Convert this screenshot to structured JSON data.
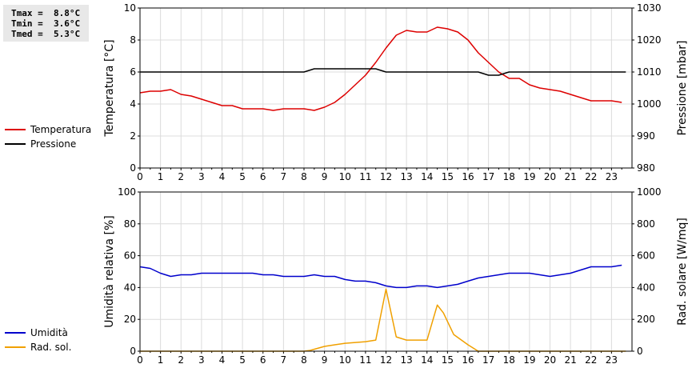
{
  "stats": {
    "tmax": "Tmax =  8.8°C",
    "tmin": "Tmin =  3.6°C",
    "tmed": "Tmed =  5.3°C"
  },
  "legend_top": [
    {
      "label": "Temperatura",
      "color": "#dd0000"
    },
    {
      "label": "Pressione",
      "color": "#000000"
    }
  ],
  "legend_bottom": [
    {
      "label": "Umidità",
      "color": "#0000cc"
    },
    {
      "label": "Rad. sol.",
      "color": "#f0a000"
    }
  ],
  "chart_data": [
    {
      "type": "line",
      "xlabel": "",
      "ylabel_left": "Temperatura [°C]",
      "ylabel_right": "Pressione [mbar]",
      "x_ticks": [
        "0",
        "1",
        "2",
        "3",
        "4",
        "5",
        "6",
        "7",
        "8",
        "9",
        "10",
        "11",
        "12",
        "13",
        "14",
        "15",
        "16",
        "17",
        "18",
        "19",
        "20",
        "21",
        "22",
        "23"
      ],
      "xlim": [
        0,
        24
      ],
      "ylim_left": [
        0,
        10
      ],
      "ylim_right": [
        980,
        1030
      ],
      "yticks_left": [
        "0",
        "2",
        "4",
        "6",
        "8",
        "10"
      ],
      "yticks_right": [
        "980",
        "990",
        "1000",
        "1010",
        "1020",
        "1030"
      ],
      "grid": true,
      "series": [
        {
          "name": "Temperatura",
          "axis": "left",
          "color": "#dd0000",
          "x": [
            0,
            0.5,
            1,
            1.5,
            2,
            2.5,
            3,
            3.5,
            4,
            4.5,
            5,
            5.5,
            6,
            6.5,
            7,
            7.5,
            8,
            8.5,
            9,
            9.5,
            10,
            10.5,
            11,
            11.5,
            12,
            12.5,
            13,
            13.5,
            14,
            14.5,
            15,
            15.5,
            16,
            16.5,
            17,
            17.5,
            18,
            18.5,
            19,
            19.5,
            20,
            20.5,
            21,
            21.5,
            22,
            22.5,
            23,
            23.5
          ],
          "y": [
            4.7,
            4.8,
            4.8,
            4.9,
            4.6,
            4.5,
            4.3,
            4.1,
            3.9,
            3.9,
            3.7,
            3.7,
            3.7,
            3.6,
            3.7,
            3.7,
            3.7,
            3.6,
            3.8,
            4.1,
            4.6,
            5.2,
            5.8,
            6.6,
            7.5,
            8.3,
            8.6,
            8.5,
            8.5,
            8.8,
            8.7,
            8.5,
            8.0,
            7.2,
            6.6,
            6.0,
            5.6,
            5.6,
            5.2,
            5.0,
            4.9,
            4.8,
            4.6,
            4.4,
            4.2,
            4.2,
            4.2,
            4.1
          ]
        },
        {
          "name": "Pressione",
          "axis": "right",
          "color": "#000000",
          "x": [
            0,
            8,
            8.5,
            9,
            11.5,
            12,
            16.5,
            17,
            17.5,
            18,
            23.7
          ],
          "y": [
            1010,
            1010,
            1011,
            1011,
            1011,
            1010,
            1010,
            1009,
            1009,
            1010,
            1010
          ]
        }
      ]
    },
    {
      "type": "line",
      "xlabel": "",
      "ylabel_left": "Umidità relativa [%]",
      "ylabel_right": "Rad. solare [W/mq]",
      "x_ticks": [
        "0",
        "1",
        "2",
        "3",
        "4",
        "5",
        "6",
        "7",
        "8",
        "9",
        "10",
        "11",
        "12",
        "13",
        "14",
        "15",
        "16",
        "17",
        "18",
        "19",
        "20",
        "21",
        "22",
        "23"
      ],
      "xlim": [
        0,
        24
      ],
      "ylim_left": [
        0,
        100
      ],
      "ylim_right": [
        0,
        1000
      ],
      "yticks_left": [
        "0",
        "20",
        "40",
        "60",
        "80",
        "100"
      ],
      "yticks_right": [
        "0",
        "200",
        "400",
        "600",
        "800",
        "1000"
      ],
      "grid": true,
      "series": [
        {
          "name": "Umidità",
          "axis": "left",
          "color": "#0000cc",
          "x": [
            0,
            0.5,
            1,
            1.5,
            2,
            2.5,
            3,
            3.5,
            4,
            4.5,
            5,
            5.5,
            6,
            6.5,
            7,
            7.5,
            8,
            8.5,
            9,
            9.5,
            10,
            10.5,
            11,
            11.5,
            12,
            12.5,
            13,
            13.5,
            14,
            14.5,
            15,
            15.5,
            16,
            16.5,
            17,
            17.5,
            18,
            18.5,
            19,
            19.5,
            20,
            20.5,
            21,
            21.5,
            22,
            22.5,
            23,
            23.5
          ],
          "y": [
            53,
            52,
            49,
            47,
            48,
            48,
            49,
            49,
            49,
            49,
            49,
            49,
            48,
            48,
            47,
            47,
            47,
            48,
            47,
            47,
            45,
            44,
            44,
            43,
            41,
            40,
            40,
            41,
            41,
            40,
            41,
            42,
            44,
            46,
            47,
            48,
            49,
            49,
            49,
            48,
            47,
            48,
            49,
            51,
            53,
            53,
            53,
            54
          ]
        },
        {
          "name": "Rad. sol.",
          "axis": "right",
          "color": "#f0a000",
          "x": [
            0,
            1,
            2,
            3,
            4,
            5,
            6,
            7,
            8,
            8.3,
            9,
            9.5,
            10,
            10.5,
            11,
            11.5,
            12,
            12.5,
            13,
            13.5,
            14,
            14.5,
            14.8,
            15.3,
            16,
            16.5,
            17,
            18,
            19,
            20,
            21,
            22,
            23,
            23.7
          ],
          "y": [
            0,
            0,
            0,
            0,
            0,
            0,
            0,
            0,
            0,
            5,
            30,
            40,
            50,
            55,
            60,
            70,
            390,
            90,
            70,
            70,
            70,
            290,
            240,
            105,
            40,
            0,
            0,
            0,
            0,
            0,
            0,
            0,
            0,
            0
          ]
        }
      ]
    }
  ]
}
